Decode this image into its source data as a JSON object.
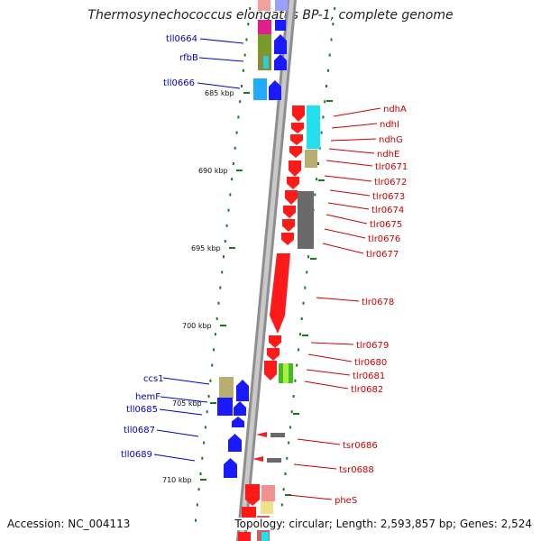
{
  "title": "Thermosynechococcus elongatus BP-1, complete genome",
  "footer": {
    "accession": "Accession: NC_004113",
    "summary": "Topology: circular; Length: 2,593,857 bp; Genes: 2,524"
  },
  "colors": {
    "backbone": "#8a8a8a",
    "forward_gene": "#ff1a1a",
    "reverse_gene": "#1a1aff",
    "label_forward": "#cc0000",
    "label_reverse": "#0000cc",
    "ticks": "#1a7a1a"
  },
  "scale_marks": [
    "685 kbp",
    "690 kbp",
    "695 kbp",
    "700 kbp",
    "705 kbp",
    "710 kbp"
  ],
  "left_labels": [
    "tll0664",
    "rfbB",
    "tll0666",
    "ccs1",
    "hemF",
    "tll0685",
    "tll0687",
    "tll0689"
  ],
  "right_labels": [
    "ndhA",
    "ndhI",
    "ndhG",
    "ndhE",
    "tlr0671",
    "tlr0672",
    "tlr0673",
    "tlr0674",
    "tlr0675",
    "tlr0676",
    "tlr0677",
    "tlr0678",
    "tlr0679",
    "tlr0680",
    "tlr0681",
    "tlr0682",
    "tsr0686",
    "tsr0688",
    "pheS"
  ]
}
